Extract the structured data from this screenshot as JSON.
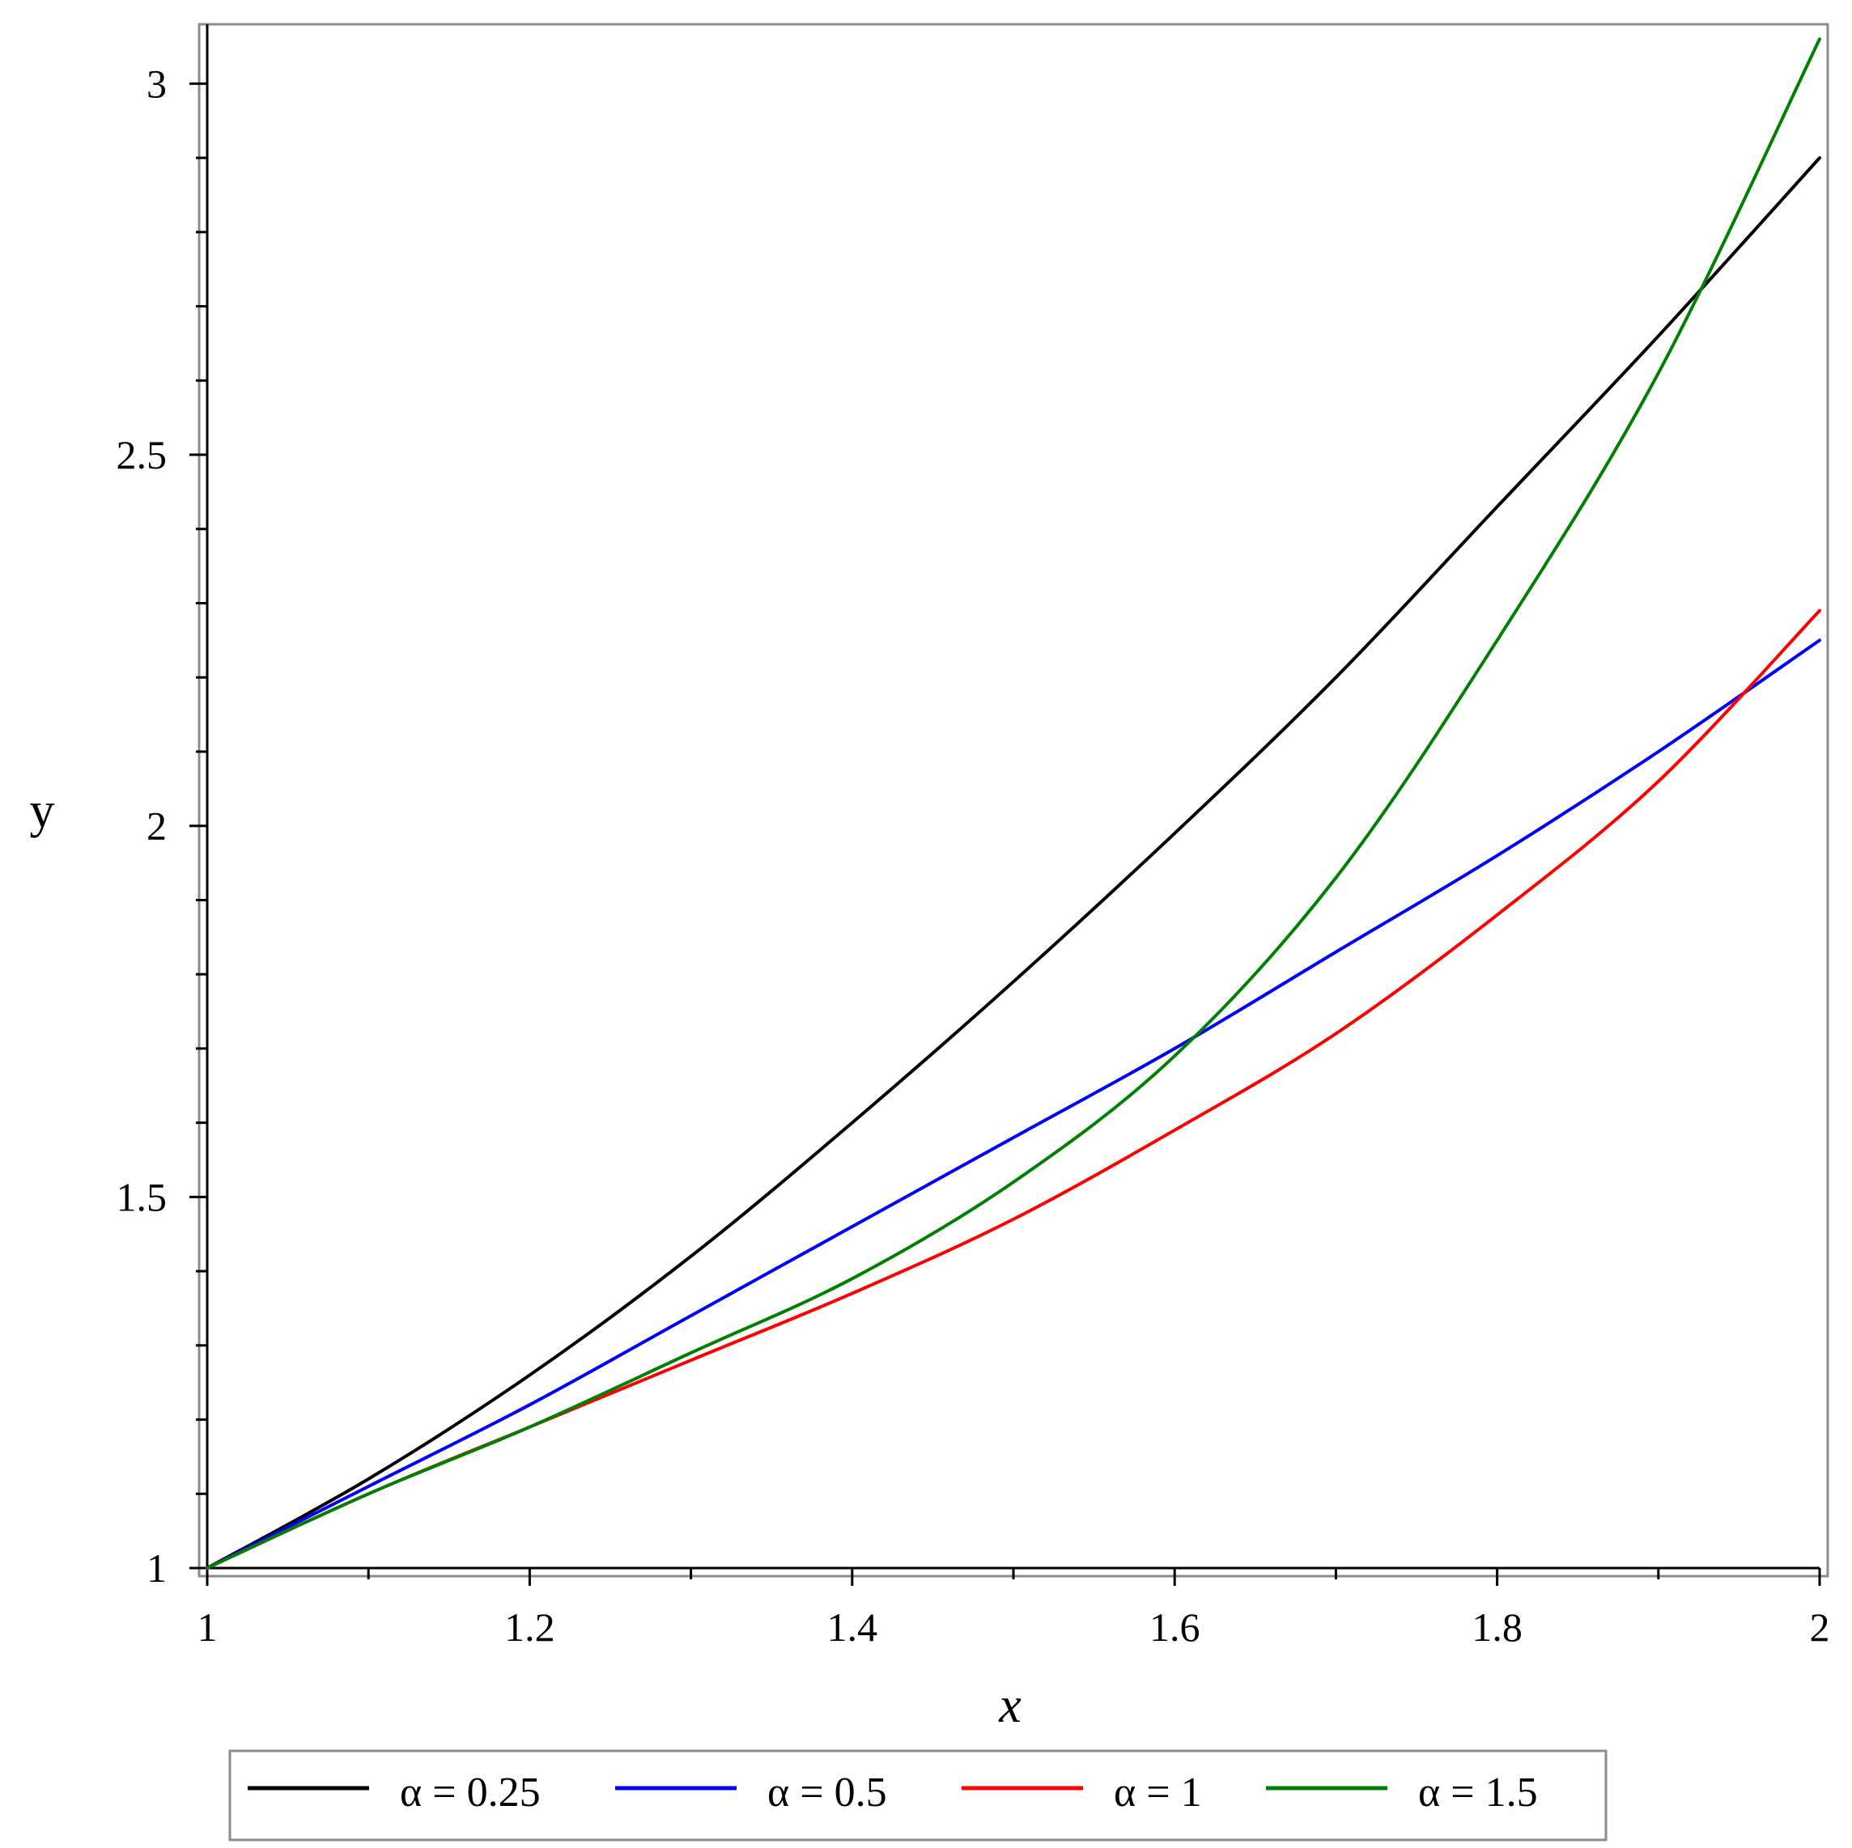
{
  "chart_data": {
    "type": "line",
    "xlabel": "x",
    "ylabel": "y",
    "xlim": [
      1,
      2
    ],
    "ylim": [
      1,
      3.08
    ],
    "x_ticks": [
      "1",
      "1.2",
      "1.4",
      "1.6",
      "1.8",
      "2"
    ],
    "y_ticks": [
      "1",
      "1.5",
      "2",
      "2.5",
      "3"
    ],
    "legend_position": "bottom",
    "series": [
      {
        "name": "α = 0.25",
        "color": "#000000",
        "x": [
          1.0,
          1.1,
          1.2,
          1.3,
          1.4,
          1.5,
          1.6,
          1.7,
          1.8,
          1.9,
          2.0
        ],
        "y": [
          1.0,
          1.12,
          1.26,
          1.42,
          1.6,
          1.79,
          1.99,
          2.2,
          2.43,
          2.66,
          2.9
        ]
      },
      {
        "name": "α = 0.5",
        "color": "#0000ff",
        "x": [
          1.0,
          1.1,
          1.2,
          1.3,
          1.4,
          1.5,
          1.6,
          1.7,
          1.8,
          1.9,
          2.0
        ],
        "y": [
          1.0,
          1.11,
          1.22,
          1.34,
          1.46,
          1.58,
          1.7,
          1.83,
          1.96,
          2.1,
          2.25
        ]
      },
      {
        "name": "α = 1",
        "color": "#ff0000",
        "x": [
          1.0,
          1.1,
          1.2,
          1.3,
          1.4,
          1.5,
          1.6,
          1.7,
          1.8,
          1.9,
          2.0
        ],
        "y": [
          1.0,
          1.1,
          1.19,
          1.28,
          1.37,
          1.47,
          1.59,
          1.72,
          1.88,
          2.06,
          2.29
        ]
      },
      {
        "name": "α = 1.5",
        "color": "#008000",
        "x": [
          1.0,
          1.1,
          1.2,
          1.3,
          1.4,
          1.5,
          1.6,
          1.7,
          1.8,
          1.9,
          2.0
        ],
        "y": [
          1.0,
          1.1,
          1.19,
          1.29,
          1.39,
          1.52,
          1.69,
          1.93,
          2.25,
          2.61,
          3.06
        ]
      }
    ]
  }
}
